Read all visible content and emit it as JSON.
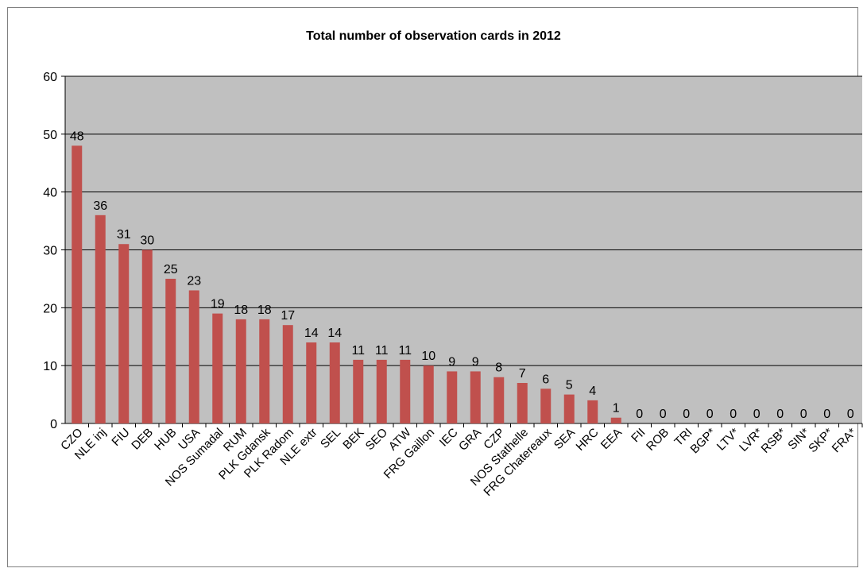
{
  "chart_data": {
    "type": "bar",
    "title": "Total number of observation cards in 2012",
    "xlabel": "",
    "ylabel": "",
    "ylim": [
      0,
      60
    ],
    "y_ticks": [
      0,
      10,
      20,
      30,
      40,
      50,
      60
    ],
    "grid": true,
    "legend": "none",
    "bar_color": "#c0504d",
    "plot_background": "#c0c0c0",
    "categories": [
      "CZO",
      "NLE inj",
      "FIU",
      "DEB",
      "HUB",
      "USA",
      "NOS Sumadal",
      "RUM",
      "PLK Gdansk",
      "PLK Radom",
      "NLE extr",
      "SEL",
      "BEK",
      "SEO",
      "ATW",
      "FRG Gaillon",
      "IEC",
      "GRA",
      "CZP",
      "NOS Stathelle",
      "FRG Chatereaux",
      "SEA",
      "HRC",
      "EEA",
      "FII",
      "ROB",
      "TRI",
      "BGP*",
      "LTV*",
      "LVR*",
      "RSB*",
      "SIN*",
      "SKP*",
      "FRA*"
    ],
    "values": [
      48,
      36,
      31,
      30,
      25,
      23,
      19,
      18,
      18,
      17,
      14,
      14,
      11,
      11,
      11,
      10,
      9,
      9,
      8,
      7,
      6,
      5,
      4,
      1,
      0,
      0,
      0,
      0,
      0,
      0,
      0,
      0,
      0,
      0
    ]
  }
}
